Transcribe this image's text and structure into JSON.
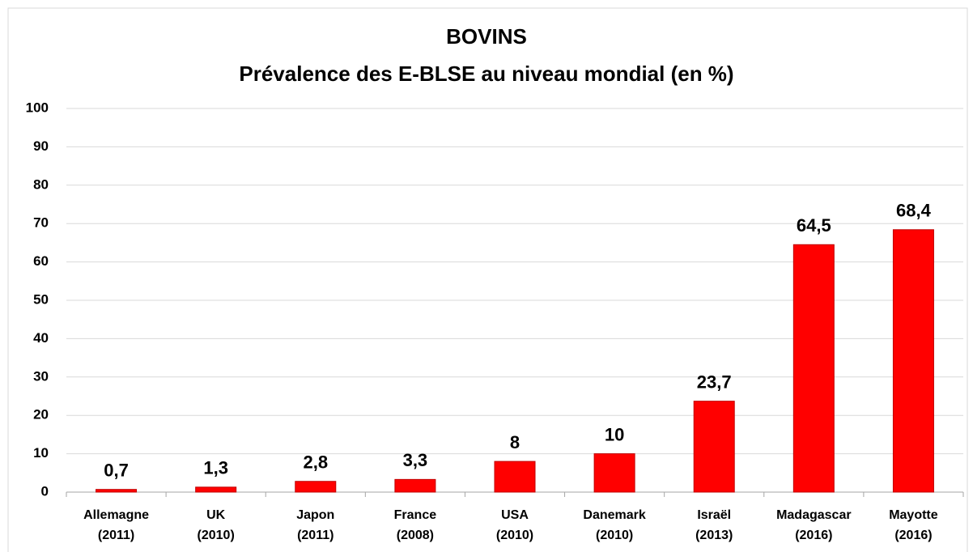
{
  "chart_data": {
    "type": "bar",
    "title": [
      "BOVINS",
      "Prévalence des E-BLSE au niveau mondial (en %)"
    ],
    "categories": [
      [
        "Allemagne",
        "(2011)"
      ],
      [
        "UK",
        "(2010)"
      ],
      [
        "Japon",
        "(2011)"
      ],
      [
        "France",
        "(2008)"
      ],
      [
        "USA",
        "(2010)"
      ],
      [
        "Danemark",
        "(2010)"
      ],
      [
        "Israël",
        "(2013)"
      ],
      [
        "Madagascar",
        "(2016)"
      ],
      [
        "Mayotte",
        "(2016)"
      ]
    ],
    "values": [
      0.7,
      1.3,
      2.8,
      3.3,
      8,
      10,
      23.7,
      64.5,
      68.4
    ],
    "value_labels": [
      "0,7",
      "1,3",
      "2,8",
      "3,3",
      "8",
      "10",
      "23,7",
      "64,5",
      "68,4"
    ],
    "color": "#ff0000",
    "ylim": [
      0,
      100
    ],
    "yticks": [
      0,
      10,
      20,
      30,
      40,
      50,
      60,
      70,
      80,
      90,
      100
    ],
    "grid": true
  }
}
